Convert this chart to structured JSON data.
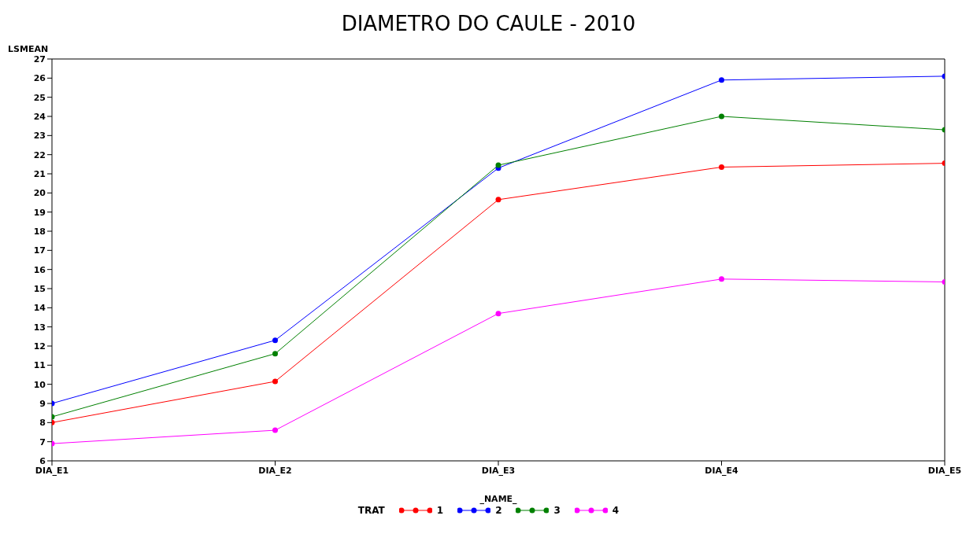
{
  "chart_data": {
    "type": "line",
    "title": "DIAMETRO DO CAULE - 2010",
    "xlabel": "_NAME_",
    "ylabel": "LSMEAN",
    "legend_title": "TRAT",
    "categories": [
      "DIA_E1",
      "DIA_E2",
      "DIA_E3",
      "DIA_E4",
      "DIA_E5"
    ],
    "series": [
      {
        "name": "1",
        "color": "#ff0000",
        "values": [
          8.0,
          10.15,
          19.65,
          21.35,
          21.55
        ]
      },
      {
        "name": "2",
        "color": "#0000ff",
        "values": [
          9.0,
          12.3,
          21.3,
          25.9,
          26.1
        ]
      },
      {
        "name": "3",
        "color": "#008000",
        "values": [
          8.3,
          11.6,
          21.45,
          24.0,
          23.3
        ]
      },
      {
        "name": "4",
        "color": "#ff00ff",
        "values": [
          6.9,
          7.6,
          13.7,
          15.5,
          15.35
        ]
      }
    ],
    "ylim": [
      6,
      27
    ],
    "yticks": [
      6,
      7,
      8,
      9,
      10,
      11,
      12,
      13,
      14,
      15,
      16,
      17,
      18,
      19,
      20,
      21,
      22,
      23,
      24,
      25,
      26,
      27
    ],
    "grid": false,
    "legend": "bottom",
    "marker": "circle",
    "line_style": "solid"
  }
}
